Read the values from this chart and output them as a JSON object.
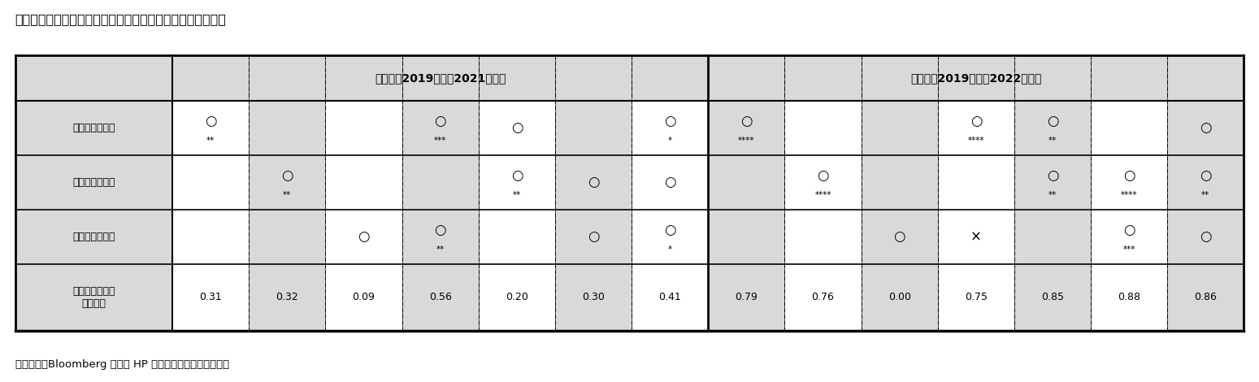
{
  "title": "》図表７》株主資本コストの変化と各社の取り組みとの関係",
  "title_prefix": "》図表７》",
  "title_full": "》図表７》株主資本コストの変化と各社の取り組みとの関係",
  "footnote": "（資料）　Bloomberg や各社 HP から取得したデータを加工",
  "header2yr": "２年間（2019年度－2021年度）",
  "header3yr": "３年間（2019年度－2022年度）",
  "row_labels": [
    "将来の取り組み",
    "過去の取り組み",
    "近年の取り組み",
    "自由度調整済み\n決定係数"
  ],
  "bg_label": "#d9d9d9",
  "bg_header": "#d9d9d9",
  "bg_white": "#ffffff",
  "bg_gray": "#d9d9d9",
  "cell_data": {
    "row0": [
      {
        "symbol": "○",
        "sig": "**"
      },
      {
        "symbol": "",
        "sig": ""
      },
      {
        "symbol": "",
        "sig": ""
      },
      {
        "symbol": "○",
        "sig": "***"
      },
      {
        "symbol": "○",
        "sig": ""
      },
      {
        "symbol": "",
        "sig": ""
      },
      {
        "symbol": "○",
        "sig": "*"
      },
      {
        "symbol": "○",
        "sig": "****"
      },
      {
        "symbol": "",
        "sig": ""
      },
      {
        "symbol": "",
        "sig": ""
      },
      {
        "symbol": "○",
        "sig": "****"
      },
      {
        "symbol": "○",
        "sig": "**"
      },
      {
        "symbol": "",
        "sig": ""
      },
      {
        "symbol": "○",
        "sig": ""
      }
    ],
    "row1": [
      {
        "symbol": "",
        "sig": ""
      },
      {
        "symbol": "○",
        "sig": "**"
      },
      {
        "symbol": "",
        "sig": ""
      },
      {
        "symbol": "",
        "sig": ""
      },
      {
        "symbol": "○",
        "sig": "**"
      },
      {
        "symbol": "○",
        "sig": ""
      },
      {
        "symbol": "○",
        "sig": ""
      },
      {
        "symbol": "",
        "sig": ""
      },
      {
        "symbol": "○",
        "sig": "****"
      },
      {
        "symbol": "",
        "sig": ""
      },
      {
        "symbol": "",
        "sig": ""
      },
      {
        "symbol": "○",
        "sig": "**"
      },
      {
        "symbol": "○",
        "sig": "****"
      },
      {
        "symbol": "○",
        "sig": "**"
      }
    ],
    "row2": [
      {
        "symbol": "",
        "sig": ""
      },
      {
        "symbol": "",
        "sig": ""
      },
      {
        "symbol": "○",
        "sig": ""
      },
      {
        "symbol": "○",
        "sig": "**"
      },
      {
        "symbol": "",
        "sig": ""
      },
      {
        "symbol": "○",
        "sig": ""
      },
      {
        "symbol": "○",
        "sig": "*"
      },
      {
        "symbol": "",
        "sig": ""
      },
      {
        "symbol": "",
        "sig": ""
      },
      {
        "symbol": "○",
        "sig": ""
      },
      {
        "symbol": "×",
        "sig": ""
      },
      {
        "symbol": "",
        "sig": ""
      },
      {
        "symbol": "○",
        "sig": "***"
      },
      {
        "symbol": "○",
        "sig": ""
      }
    ],
    "row3": [
      "0.31",
      "0.32",
      "0.09",
      "0.56",
      "0.20",
      "0.30",
      "0.41",
      "0.79",
      "0.76",
      "0.00",
      "0.75",
      "0.85",
      "0.88",
      "0.86"
    ]
  }
}
